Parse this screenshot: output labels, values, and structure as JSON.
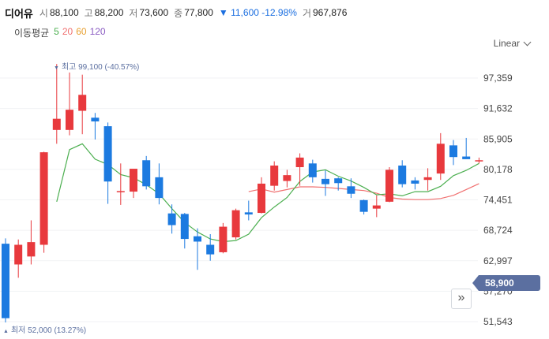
{
  "header": {
    "name": "디어유",
    "open_label": "시",
    "open": "88,100",
    "high_label": "고",
    "high": "88,200",
    "low_label": "저",
    "low": "73,600",
    "close_label": "종",
    "close": "77,800",
    "change": "▼ 11,600 -12.98%",
    "volume_label": "거",
    "volume": "967,876"
  },
  "moving_average": {
    "title": "이동평균",
    "periods": [
      {
        "label": "5",
        "color": "#4caf50"
      },
      {
        "label": "20",
        "color": "#f07070"
      },
      {
        "label": "60",
        "color": "#e8a030"
      },
      {
        "label": "120",
        "color": "#8a5cc2"
      }
    ]
  },
  "scale_selector": {
    "label": "Linear"
  },
  "markers": {
    "high": "최고 99,100 (-40.57%)",
    "low": "최저 52,000 (13.27%)"
  },
  "current_price": "58,900",
  "nav_button_label": "»",
  "colors": {
    "up": "#e8393d",
    "down": "#1c7ae0",
    "ma5": "#4caf50",
    "ma20": "#f07070",
    "tag": "#5b6fa0",
    "grid": "#f1f2f4"
  },
  "chart_data": {
    "type": "candlestick",
    "y_ticks": [
      "97,359",
      "91,632",
      "85,905",
      "80,178",
      "74,451",
      "68,724",
      "62,997",
      "57,270",
      "51,543"
    ],
    "ylim": [
      51543,
      97359
    ],
    "grid": true,
    "candles": [
      {
        "o": 66200,
        "h": 67200,
        "l": 51400,
        "c": 52200
      },
      {
        "o": 62300,
        "h": 67000,
        "l": 59800,
        "c": 66000
      },
      {
        "o": 63800,
        "h": 70600,
        "l": 62300,
        "c": 66500
      },
      {
        "o": 66000,
        "h": 83500,
        "l": 64500,
        "c": 83400
      },
      {
        "o": 87600,
        "h": 100000,
        "l": 85000,
        "c": 89700
      },
      {
        "o": 87600,
        "h": 98400,
        "l": 86600,
        "c": 91400
      },
      {
        "o": 91200,
        "h": 98000,
        "l": 86800,
        "c": 94200
      },
      {
        "o": 89900,
        "h": 90800,
        "l": 85800,
        "c": 89200
      },
      {
        "o": 88300,
        "h": 89000,
        "l": 73700,
        "c": 77900
      },
      {
        "o": 76100,
        "h": 81300,
        "l": 73500,
        "c": 76100
      },
      {
        "o": 76000,
        "h": 80100,
        "l": 74800,
        "c": 80300
      },
      {
        "o": 81900,
        "h": 82700,
        "l": 76400,
        "c": 77000
      },
      {
        "o": 78700,
        "h": 81300,
        "l": 73600,
        "c": 74800
      },
      {
        "o": 71900,
        "h": 73600,
        "l": 68100,
        "c": 69700
      },
      {
        "o": 71800,
        "h": 72000,
        "l": 65300,
        "c": 67100
      },
      {
        "o": 67600,
        "h": 69100,
        "l": 61300,
        "c": 66600
      },
      {
        "o": 66000,
        "h": 68000,
        "l": 63000,
        "c": 64200
      },
      {
        "o": 64600,
        "h": 70100,
        "l": 64400,
        "c": 69400
      },
      {
        "o": 67400,
        "h": 72800,
        "l": 67000,
        "c": 72500
      },
      {
        "o": 72100,
        "h": 74300,
        "l": 70600,
        "c": 71700
      },
      {
        "o": 72000,
        "h": 78700,
        "l": 71900,
        "c": 77500
      },
      {
        "o": 77100,
        "h": 81700,
        "l": 76200,
        "c": 80900
      },
      {
        "o": 78000,
        "h": 80100,
        "l": 76800,
        "c": 79100
      },
      {
        "o": 80600,
        "h": 83200,
        "l": 77100,
        "c": 82400
      },
      {
        "o": 81300,
        "h": 82000,
        "l": 77700,
        "c": 78700
      },
      {
        "o": 78400,
        "h": 80000,
        "l": 75200,
        "c": 77400
      },
      {
        "o": 78500,
        "h": 78700,
        "l": 76200,
        "c": 77600
      },
      {
        "o": 77000,
        "h": 78500,
        "l": 74800,
        "c": 75600
      },
      {
        "o": 74400,
        "h": 74500,
        "l": 71700,
        "c": 72200
      },
      {
        "o": 72800,
        "h": 75300,
        "l": 71200,
        "c": 73400
      },
      {
        "o": 74100,
        "h": 80600,
        "l": 74000,
        "c": 80100
      },
      {
        "o": 80900,
        "h": 81900,
        "l": 76800,
        "c": 77400
      },
      {
        "o": 78100,
        "h": 78700,
        "l": 76400,
        "c": 77500
      },
      {
        "o": 78200,
        "h": 80400,
        "l": 76200,
        "c": 78700
      },
      {
        "o": 79400,
        "h": 87000,
        "l": 78200,
        "c": 85000
      },
      {
        "o": 84700,
        "h": 85700,
        "l": 81000,
        "c": 82500
      },
      {
        "o": 82600,
        "h": 86100,
        "l": 82200,
        "c": 82100
      },
      {
        "o": 81800,
        "h": 82400,
        "l": 81300,
        "c": 81900
      }
    ],
    "ma5": [
      null,
      null,
      null,
      null,
      74100,
      83900,
      85000,
      82100,
      81100,
      79200,
      78600,
      77300,
      75600,
      72800,
      70200,
      68400,
      67100,
      66600,
      66800,
      68000,
      71100,
      73100,
      74900,
      77900,
      79700,
      80100,
      78900,
      78000,
      76800,
      75400,
      75600,
      75200,
      76000,
      76000,
      77000,
      79000,
      80000,
      81300
    ],
    "ma20": [
      null,
      null,
      null,
      null,
      null,
      null,
      null,
      null,
      null,
      null,
      null,
      null,
      null,
      null,
      null,
      null,
      null,
      null,
      null,
      76000,
      76500,
      75900,
      76400,
      76900,
      76900,
      76800,
      76600,
      76400,
      76200,
      75700,
      74900,
      74600,
      74500,
      74500,
      74700,
      75300,
      76400,
      77500
    ]
  }
}
